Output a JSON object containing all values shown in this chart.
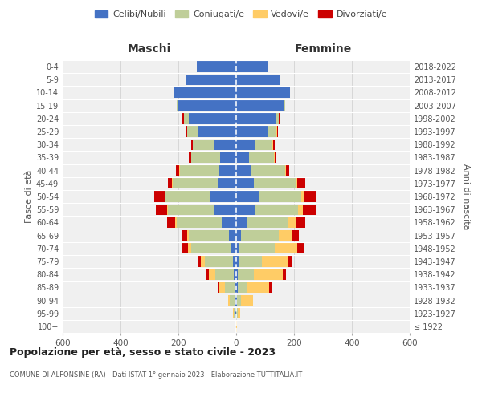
{
  "age_groups": [
    "100+",
    "95-99",
    "90-94",
    "85-89",
    "80-84",
    "75-79",
    "70-74",
    "65-69",
    "60-64",
    "55-59",
    "50-54",
    "45-49",
    "40-44",
    "35-39",
    "30-34",
    "25-29",
    "20-24",
    "15-19",
    "10-14",
    "5-9",
    "0-4"
  ],
  "birth_years": [
    "≤ 1922",
    "1923-1927",
    "1928-1932",
    "1933-1937",
    "1938-1942",
    "1943-1947",
    "1948-1952",
    "1953-1957",
    "1958-1962",
    "1963-1967",
    "1968-1972",
    "1973-1977",
    "1978-1982",
    "1983-1987",
    "1988-1992",
    "1993-1997",
    "1998-2002",
    "2003-2007",
    "2008-2012",
    "2013-2017",
    "2018-2022"
  ],
  "maschi": {
    "celibi": [
      0,
      2,
      3,
      5,
      8,
      12,
      20,
      25,
      50,
      75,
      90,
      65,
      60,
      55,
      75,
      130,
      165,
      200,
      215,
      175,
      135
    ],
    "coniugati": [
      0,
      5,
      18,
      35,
      65,
      95,
      135,
      140,
      155,
      160,
      155,
      155,
      135,
      100,
      75,
      40,
      15,
      5,
      2,
      0,
      0
    ],
    "vedovi": [
      0,
      3,
      8,
      18,
      22,
      15,
      12,
      5,
      5,
      3,
      3,
      2,
      2,
      0,
      0,
      0,
      0,
      0,
      0,
      0,
      0
    ],
    "divorziati": [
      0,
      0,
      0,
      5,
      10,
      10,
      20,
      20,
      30,
      40,
      35,
      15,
      10,
      8,
      5,
      5,
      5,
      0,
      0,
      0,
      0
    ]
  },
  "femmine": {
    "nubili": [
      0,
      0,
      2,
      5,
      5,
      8,
      12,
      18,
      40,
      65,
      80,
      60,
      50,
      45,
      65,
      110,
      135,
      165,
      185,
      150,
      110
    ],
    "coniugate": [
      0,
      5,
      15,
      30,
      55,
      80,
      120,
      130,
      140,
      150,
      145,
      145,
      120,
      85,
      60,
      30,
      12,
      4,
      2,
      0,
      0
    ],
    "vedove": [
      2,
      8,
      40,
      80,
      100,
      90,
      80,
      45,
      25,
      15,
      10,
      5,
      3,
      2,
      2,
      2,
      0,
      0,
      0,
      0,
      0
    ],
    "divorziate": [
      0,
      0,
      0,
      8,
      12,
      15,
      25,
      25,
      35,
      45,
      40,
      30,
      10,
      8,
      5,
      2,
      2,
      0,
      0,
      0,
      0
    ]
  },
  "colors": {
    "celibi": "#4472C4",
    "coniugati": "#BFCE99",
    "vedovi": "#FFCC66",
    "divorziati": "#CC0000"
  },
  "legend_labels": [
    "Celibi/Nubili",
    "Coniugati/e",
    "Vedovi/e",
    "Divorziati/e"
  ],
  "title": "Popolazione per età, sesso e stato civile - 2023",
  "subtitle": "COMUNE DI ALFONSINE (RA) - Dati ISTAT 1° gennaio 2023 - Elaborazione TUTTITALIA.IT",
  "xlabel_left": "Maschi",
  "xlabel_right": "Femmine",
  "ylabel_left": "Fasce di età",
  "ylabel_right": "Anni di nascita",
  "xlim": 600,
  "background_color": "#ffffff",
  "grid_color": "#cccccc"
}
